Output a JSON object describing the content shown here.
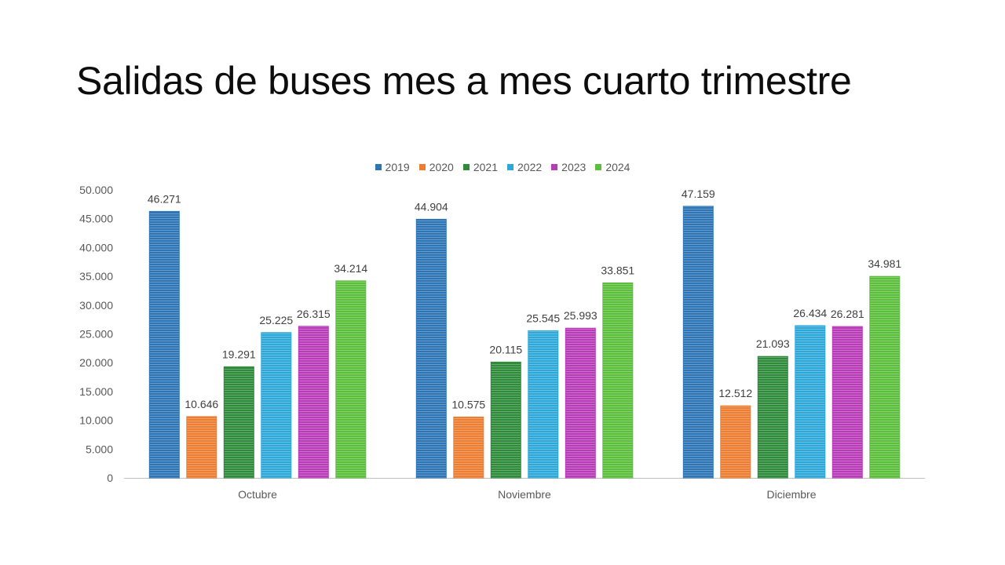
{
  "slide": {
    "title": "Salidas de buses mes a mes cuarto trimestre"
  },
  "chart_data": {
    "type": "bar",
    "title": "",
    "xlabel": "",
    "ylabel": "",
    "categories": [
      "Octubre",
      "Noviembre",
      "Diciembre"
    ],
    "ylim": [
      0,
      50000
    ],
    "yticks": [
      0,
      5000,
      10000,
      15000,
      20000,
      25000,
      30000,
      35000,
      40000,
      45000,
      50000
    ],
    "ytick_labels": [
      "0",
      "5.000",
      "10.000",
      "15.000",
      "20.000",
      "25.000",
      "30.000",
      "35.000",
      "40.000",
      "45.000",
      "50.000"
    ],
    "grid": false,
    "legend_position": "top",
    "series": [
      {
        "name": "2019",
        "color": "#2e75b6",
        "values": [
          46271,
          44904,
          47159
        ],
        "labels": [
          "46.271",
          "44.904",
          "47.159"
        ]
      },
      {
        "name": "2020",
        "color": "#ed7d31",
        "values": [
          10646,
          10575,
          12512
        ],
        "labels": [
          "10.646",
          "10.575",
          "12.512"
        ]
      },
      {
        "name": "2021",
        "color": "#2e8b3a",
        "values": [
          19291,
          20115,
          21093
        ],
        "labels": [
          "19.291",
          "20.115",
          "21.093"
        ]
      },
      {
        "name": "2022",
        "color": "#2ea8d8",
        "values": [
          25225,
          25545,
          26434
        ],
        "labels": [
          "25.225",
          "25.545",
          "26.434"
        ]
      },
      {
        "name": "2023",
        "color": "#b83bb8",
        "values": [
          26315,
          25993,
          26281
        ],
        "labels": [
          "26.315",
          "25.993",
          "26.281"
        ]
      },
      {
        "name": "2024",
        "color": "#5cbf3c",
        "values": [
          34214,
          33851,
          34981
        ],
        "labels": [
          "34.214",
          "33.851",
          "34.981"
        ]
      }
    ]
  }
}
